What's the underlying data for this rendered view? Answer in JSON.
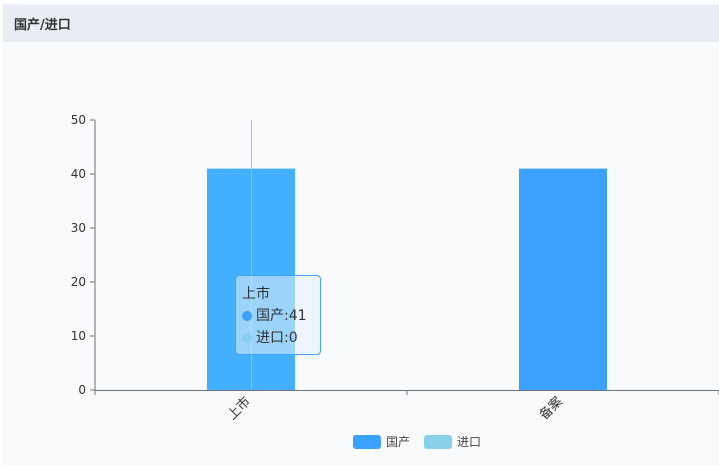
{
  "panel": {
    "title": "国产/进口"
  },
  "colors": {
    "domestic": "#3ba1ff",
    "domestic_highlight": "#42afff",
    "import": "#88d1ea"
  },
  "chart_data": {
    "type": "bar",
    "categories": [
      "上市",
      "备案"
    ],
    "series": [
      {
        "name": "国产",
        "values": [
          41,
          41
        ]
      },
      {
        "name": "进口",
        "values": [
          0,
          0
        ]
      }
    ],
    "ylim": [
      0,
      50
    ],
    "yticks": [
      0,
      10,
      20,
      30,
      40,
      50
    ],
    "legend": "bottom-center",
    "grid": false
  },
  "tooltip": {
    "category": "上市",
    "rows": [
      {
        "label": "国产",
        "value": "41"
      },
      {
        "label": "进口",
        "value": "0"
      }
    ]
  }
}
